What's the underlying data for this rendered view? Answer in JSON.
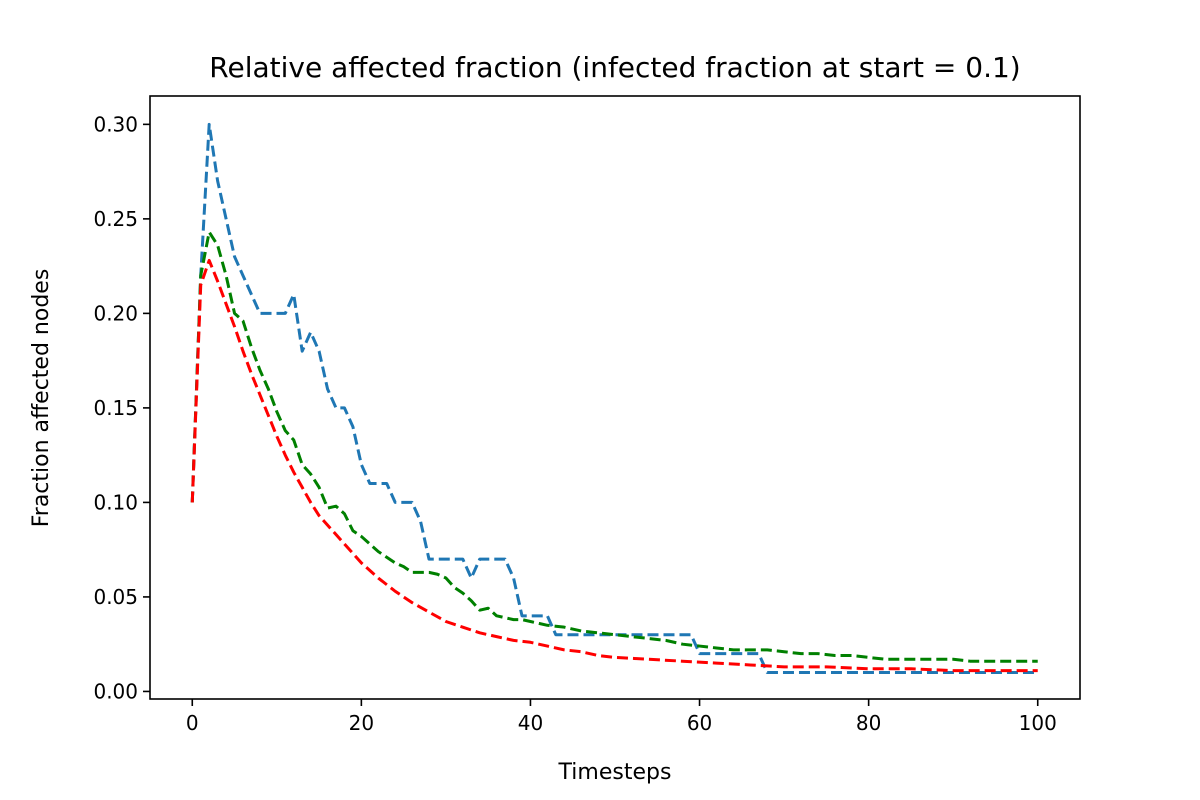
{
  "chart_data": {
    "type": "line",
    "title": "Relative affected fraction (infected fraction at start = 0.1)",
    "xlabel": "Timesteps",
    "ylabel": "Fraction affected nodes",
    "xlim": [
      -5,
      105
    ],
    "ylim": [
      -0.004,
      0.315
    ],
    "xticks": [
      0,
      20,
      40,
      60,
      80,
      100
    ],
    "xtick_labels": [
      "0",
      "20",
      "40",
      "60",
      "80",
      "100"
    ],
    "yticks": [
      0.0,
      0.05,
      0.1,
      0.15,
      0.2,
      0.25,
      0.3
    ],
    "ytick_labels": [
      "0.00",
      "0.05",
      "0.10",
      "0.15",
      "0.20",
      "0.25",
      "0.30"
    ],
    "grid": false,
    "series": [
      {
        "name": "blue",
        "color": "#1f77b4",
        "x": [
          0,
          1,
          2,
          3,
          4,
          5,
          6,
          7,
          8,
          9,
          10,
          11,
          12,
          13,
          14,
          15,
          16,
          17,
          18,
          19,
          20,
          21,
          22,
          23,
          24,
          25,
          26,
          27,
          28,
          29,
          30,
          31,
          32,
          33,
          34,
          35,
          36,
          37,
          38,
          39,
          40,
          41,
          42,
          43,
          44,
          45,
          46,
          47,
          48,
          49,
          50,
          51,
          52,
          53,
          54,
          55,
          56,
          57,
          58,
          59,
          60,
          61,
          62,
          63,
          64,
          65,
          66,
          67,
          68,
          69,
          70,
          72,
          74,
          76,
          78,
          80,
          82,
          84,
          86,
          88,
          90,
          92,
          94,
          96,
          98,
          100
        ],
        "values": [
          0.1,
          0.22,
          0.3,
          0.27,
          0.25,
          0.23,
          0.22,
          0.21,
          0.2,
          0.2,
          0.2,
          0.2,
          0.21,
          0.18,
          0.19,
          0.18,
          0.16,
          0.15,
          0.15,
          0.14,
          0.12,
          0.11,
          0.11,
          0.11,
          0.1,
          0.1,
          0.1,
          0.09,
          0.07,
          0.07,
          0.07,
          0.07,
          0.07,
          0.06,
          0.07,
          0.07,
          0.07,
          0.07,
          0.06,
          0.04,
          0.04,
          0.04,
          0.04,
          0.03,
          0.03,
          0.03,
          0.03,
          0.03,
          0.03,
          0.03,
          0.03,
          0.03,
          0.03,
          0.03,
          0.03,
          0.03,
          0.03,
          0.03,
          0.03,
          0.03,
          0.02,
          0.02,
          0.02,
          0.02,
          0.02,
          0.02,
          0.02,
          0.02,
          0.01,
          0.01,
          0.01,
          0.01,
          0.01,
          0.01,
          0.01,
          0.01,
          0.01,
          0.01,
          0.01,
          0.01,
          0.01,
          0.01,
          0.01,
          0.01,
          0.01,
          0.01
        ]
      },
      {
        "name": "green",
        "color": "#008000",
        "x": [
          0,
          1,
          2,
          3,
          4,
          5,
          6,
          7,
          8,
          9,
          10,
          11,
          12,
          13,
          14,
          15,
          16,
          17,
          18,
          19,
          20,
          21,
          22,
          23,
          24,
          25,
          26,
          27,
          28,
          29,
          30,
          31,
          32,
          33,
          34,
          35,
          36,
          37,
          38,
          39,
          40,
          42,
          44,
          46,
          48,
          50,
          52,
          54,
          56,
          58,
          60,
          62,
          64,
          66,
          68,
          70,
          72,
          74,
          76,
          78,
          80,
          82,
          84,
          86,
          88,
          90,
          92,
          94,
          96,
          98,
          100
        ],
        "values": [
          0.1,
          0.22,
          0.243,
          0.236,
          0.22,
          0.2,
          0.196,
          0.182,
          0.17,
          0.16,
          0.148,
          0.138,
          0.133,
          0.12,
          0.115,
          0.108,
          0.097,
          0.098,
          0.094,
          0.085,
          0.082,
          0.078,
          0.074,
          0.071,
          0.068,
          0.066,
          0.063,
          0.063,
          0.063,
          0.062,
          0.06,
          0.055,
          0.052,
          0.048,
          0.043,
          0.044,
          0.04,
          0.039,
          0.038,
          0.038,
          0.037,
          0.035,
          0.034,
          0.032,
          0.031,
          0.03,
          0.029,
          0.028,
          0.027,
          0.025,
          0.024,
          0.023,
          0.022,
          0.022,
          0.022,
          0.021,
          0.02,
          0.02,
          0.019,
          0.019,
          0.018,
          0.017,
          0.017,
          0.017,
          0.017,
          0.017,
          0.016,
          0.016,
          0.016,
          0.016,
          0.016
        ]
      },
      {
        "name": "red",
        "color": "#ff0000",
        "x": [
          0,
          1,
          2,
          3,
          4,
          5,
          6,
          7,
          8,
          9,
          10,
          11,
          12,
          13,
          14,
          15,
          16,
          17,
          18,
          19,
          20,
          22,
          24,
          26,
          28,
          30,
          32,
          34,
          36,
          38,
          40,
          42,
          44,
          46,
          48,
          50,
          54,
          58,
          62,
          66,
          70,
          75,
          80,
          85,
          90,
          95,
          100
        ],
        "values": [
          0.1,
          0.215,
          0.228,
          0.217,
          0.205,
          0.193,
          0.18,
          0.168,
          0.157,
          0.146,
          0.135,
          0.125,
          0.116,
          0.108,
          0.1,
          0.093,
          0.088,
          0.083,
          0.078,
          0.073,
          0.068,
          0.06,
          0.053,
          0.047,
          0.042,
          0.037,
          0.034,
          0.031,
          0.029,
          0.027,
          0.026,
          0.024,
          0.022,
          0.021,
          0.019,
          0.018,
          0.017,
          0.016,
          0.015,
          0.014,
          0.013,
          0.013,
          0.012,
          0.012,
          0.011,
          0.011,
          0.011
        ]
      }
    ]
  }
}
